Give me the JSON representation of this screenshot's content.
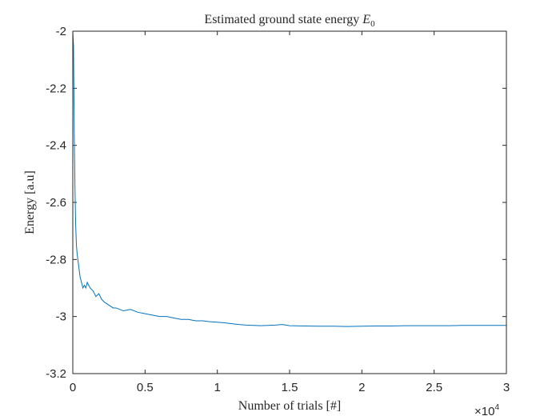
{
  "chart_data": {
    "type": "line",
    "title": "Estimated ground state energy",
    "title_symbol": "E",
    "title_subscript": "0",
    "xlabel": "Number of trials [#]",
    "ylabel": "Energy [a.u]",
    "xlim": [
      0,
      30000
    ],
    "ylim": [
      -3.2,
      -2.0
    ],
    "xticks": [
      0,
      5000,
      10000,
      15000,
      20000,
      25000,
      30000
    ],
    "xtick_labels": [
      "0",
      "0.5",
      "1",
      "1.5",
      "2",
      "2.5",
      "3"
    ],
    "yticks": [
      -2.0,
      -2.2,
      -2.4,
      -2.6,
      -2.8,
      -3.0,
      -3.2
    ],
    "ytick_labels": [
      "-2",
      "-2.2",
      "-2.4",
      "-2.6",
      "-2.8",
      "-3",
      "-3.2"
    ],
    "x_multiplier_base": "×10",
    "x_multiplier_exponent": "4",
    "grid": false,
    "series_color": "#0072BD",
    "series": [
      {
        "x": [
          0,
          50,
          100,
          150,
          200,
          250,
          300,
          350,
          400,
          500,
          600,
          700,
          800,
          900,
          1000,
          1200,
          1400,
          1600,
          1800,
          2000,
          2200,
          2500,
          2800,
          3000,
          3500,
          4000,
          4500,
          5000,
          5500,
          6000,
          6500,
          7000,
          7500,
          8000,
          8500,
          9000,
          9500,
          10000,
          10500,
          11000,
          11500,
          12000,
          13000,
          14000,
          14500,
          15000,
          16000,
          17000,
          18000,
          19000,
          20000,
          21000,
          22000,
          23000,
          24000,
          25000,
          26000,
          27000,
          28000,
          29000,
          30000
        ],
        "y": [
          -2.0,
          -2.05,
          -2.35,
          -2.55,
          -2.68,
          -2.75,
          -2.78,
          -2.8,
          -2.82,
          -2.86,
          -2.88,
          -2.9,
          -2.89,
          -2.9,
          -2.88,
          -2.9,
          -2.91,
          -2.93,
          -2.92,
          -2.94,
          -2.95,
          -2.96,
          -2.97,
          -2.97,
          -2.98,
          -2.975,
          -2.985,
          -2.99,
          -2.995,
          -3.0,
          -3.0,
          -3.005,
          -3.01,
          -3.01,
          -3.015,
          -3.015,
          -3.018,
          -3.02,
          -3.022,
          -3.025,
          -3.028,
          -3.03,
          -3.032,
          -3.03,
          -3.028,
          -3.032,
          -3.033,
          -3.034,
          -3.034,
          -3.035,
          -3.034,
          -3.033,
          -3.033,
          -3.032,
          -3.032,
          -3.032,
          -3.032,
          -3.031,
          -3.031,
          -3.031,
          -3.031
        ]
      }
    ]
  }
}
